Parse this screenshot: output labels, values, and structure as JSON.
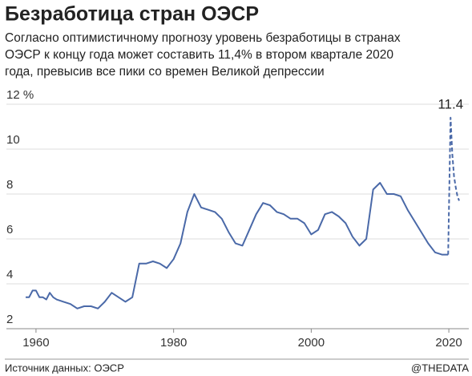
{
  "chart_data": {
    "type": "line",
    "title": "Безработица стран ОЭСР",
    "subtitle": [
      "Согласно оптимистичному прогнозу уровень безработицы в странах",
      "ОЭСР к концу года может составить 11,4% в втором квартале 2020",
      "года, превысив все пики со времен Великой депрессии"
    ],
    "source": "Источник данных: ОЭСР",
    "credit": "@THEDATA",
    "x": [
      1958.5,
      1959,
      1959.5,
      1960,
      1960.5,
      1961,
      1961.5,
      1962,
      1962.5,
      1963,
      1964,
      1965,
      1966,
      1967,
      1968,
      1969,
      1970,
      1971,
      1972,
      1973,
      1974,
      1975,
      1976,
      1977,
      1978,
      1979,
      1980,
      1981,
      1982,
      1983,
      1984,
      1985,
      1986,
      1987,
      1988,
      1989,
      1990,
      1991,
      1992,
      1993,
      1994,
      1995,
      1996,
      1997,
      1998,
      1999,
      2000,
      2001,
      2002,
      2003,
      2004,
      2005,
      2006,
      2007,
      2008,
      2009,
      2010,
      2011,
      2012,
      2013,
      2014,
      2015,
      2016,
      2017,
      2018,
      2019,
      2019.5,
      2019.9,
      2020.25,
      2020.5,
      2020.75,
      2021,
      2021.25,
      2021.5
    ],
    "series": [
      {
        "color": "#4a69a8",
        "dashed": false,
        "values": [
          3.4,
          3.4,
          3.7,
          3.7,
          3.4,
          3.4,
          3.3,
          3.6,
          3.4,
          3.3,
          3.2,
          3.1,
          2.9,
          3.0,
          3.0,
          2.9,
          3.2,
          3.6,
          3.4,
          3.2,
          3.4,
          4.9,
          4.9,
          5.0,
          4.9,
          4.7,
          5.1,
          5.8,
          7.2,
          8.0,
          7.4,
          7.3,
          7.2,
          6.9,
          6.3,
          5.8,
          5.7,
          6.4,
          7.1,
          7.6,
          7.5,
          7.2,
          7.1,
          6.9,
          6.9,
          6.7,
          6.2,
          6.4,
          7.1,
          7.2,
          7.0,
          6.7,
          6.1,
          5.7,
          6.0,
          8.2,
          8.5,
          8.0,
          8.0,
          7.9,
          7.3,
          6.8,
          6.3,
          5.8,
          5.4,
          5.3,
          5.3,
          5.3,
          null,
          null,
          null,
          null,
          null,
          null
        ]
      },
      {
        "color": "#4a69a8",
        "dashed": true,
        "values": [
          null,
          null,
          null,
          null,
          null,
          null,
          null,
          null,
          null,
          null,
          null,
          null,
          null,
          null,
          null,
          null,
          null,
          null,
          null,
          null,
          null,
          null,
          null,
          null,
          null,
          null,
          null,
          null,
          null,
          null,
          null,
          null,
          null,
          null,
          null,
          null,
          null,
          null,
          null,
          null,
          null,
          null,
          null,
          null,
          null,
          null,
          null,
          null,
          null,
          null,
          null,
          null,
          null,
          null,
          null,
          null,
          null,
          null,
          null,
          null,
          null,
          null,
          null,
          null,
          null,
          null,
          null,
          5.3,
          11.4,
          9.8,
          8.8,
          8.3,
          7.9,
          7.7
        ],
        "value_labels": [
          null,
          null,
          null,
          null,
          null,
          null,
          null,
          null,
          null,
          null,
          null,
          null,
          null,
          null,
          null,
          null,
          null,
          null,
          null,
          null,
          null,
          null,
          null,
          null,
          null,
          null,
          null,
          null,
          null,
          null,
          null,
          null,
          null,
          null,
          null,
          null,
          null,
          null,
          null,
          null,
          null,
          null,
          null,
          null,
          null,
          null,
          null,
          null,
          null,
          null,
          null,
          null,
          null,
          null,
          null,
          null,
          null,
          null,
          null,
          null,
          null,
          null,
          null,
          null,
          null,
          null,
          null,
          null,
          "11.4",
          null,
          null,
          null,
          null,
          null
        ]
      }
    ],
    "xlim": [
      1955.7,
      2022.9
    ],
    "xticks": [
      1960,
      1980,
      2000,
      2020
    ],
    "ylim": [
      2,
      12
    ],
    "yticks": [
      2,
      4,
      6,
      8,
      10,
      {
        "value": 12,
        "label": "12 %"
      }
    ],
    "grid": true
  }
}
